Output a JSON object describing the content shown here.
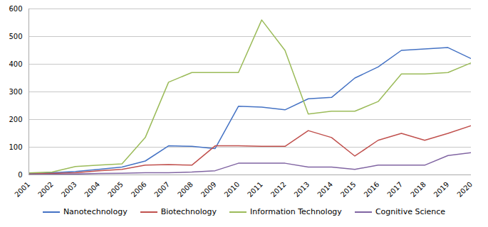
{
  "chart_data": {
    "type": "line",
    "x": [
      2001,
      2002,
      2003,
      2004,
      2005,
      2006,
      2007,
      2008,
      2009,
      2010,
      2011,
      2012,
      2013,
      2014,
      2015,
      2016,
      2017,
      2018,
      2019,
      2020
    ],
    "series": [
      {
        "name": "Nanotechnology",
        "color": "#4472C4",
        "values": [
          5,
          8,
          12,
          20,
          28,
          50,
          105,
          103,
          95,
          248,
          245,
          235,
          275,
          280,
          350,
          390,
          450,
          455,
          460,
          420
        ]
      },
      {
        "name": "Biotechnology",
        "color": "#C0504D",
        "values": [
          3,
          5,
          8,
          15,
          20,
          35,
          37,
          35,
          105,
          105,
          103,
          103,
          160,
          135,
          68,
          125,
          150,
          125,
          150,
          178
        ]
      },
      {
        "name": "Information Technology",
        "color": "#9BBB59",
        "values": [
          7,
          10,
          30,
          35,
          40,
          135,
          335,
          370,
          370,
          370,
          560,
          450,
          220,
          230,
          230,
          265,
          365,
          365,
          370,
          405
        ]
      },
      {
        "name": "Cognitive Science",
        "color": "#8064A2",
        "values": [
          1,
          2,
          3,
          5,
          6,
          8,
          8,
          10,
          15,
          42,
          42,
          42,
          28,
          28,
          20,
          35,
          35,
          35,
          70,
          80
        ]
      }
    ],
    "xlim": [
      2001,
      2020
    ],
    "xticks": [
      2001,
      2002,
      2003,
      2004,
      2005,
      2006,
      2007,
      2008,
      2009,
      2010,
      2011,
      2012,
      2013,
      2014,
      2015,
      2016,
      2017,
      2018,
      2019,
      2020
    ],
    "ylim": [
      0,
      600
    ],
    "yticks": [
      0,
      100,
      200,
      300,
      400,
      500,
      600
    ],
    "grid": true,
    "legend": "bottom"
  }
}
